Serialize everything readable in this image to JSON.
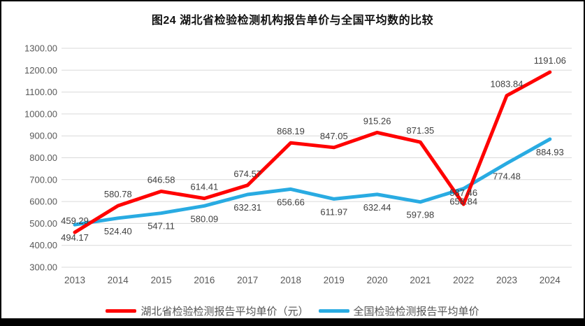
{
  "figure": {
    "title": "图24 湖北省检验检测机构报告单价与全国平均数的比较"
  },
  "chart_data": {
    "type": "line",
    "categories": [
      "2013",
      "2014",
      "2015",
      "2016",
      "2017",
      "2018",
      "2019",
      "2020",
      "2021",
      "2022",
      "2023",
      "2024"
    ],
    "series": [
      {
        "name": "湖北省检验检测报告平均单价（元）",
        "color": "#FF0000",
        "label_position": "above",
        "values": [
          459.29,
          580.78,
          646.58,
          614.41,
          674.57,
          868.19,
          847.05,
          915.26,
          871.35,
          587.46,
          1083.84,
          1191.06
        ]
      },
      {
        "name": "全国检验检测报告平均单价",
        "color": "#29ABE2",
        "label_position": "below",
        "values": [
          494.17,
          524.4,
          547.11,
          580.09,
          632.31,
          656.66,
          611.97,
          632.44,
          597.98,
          658.84,
          774.48,
          884.93
        ]
      }
    ],
    "ylim": [
      300,
      1300
    ],
    "ytick_step": 100,
    "yticks": [
      "300.00",
      "400.00",
      "500.00",
      "600.00",
      "700.00",
      "800.00",
      "900.00",
      "1000.00",
      "1100.00",
      "1200.00",
      "1300.00"
    ],
    "grid": true,
    "gridline_color": "#D9D9D9",
    "tick_label_color": "#595959",
    "data_label_color": "#404040",
    "legend_position": "bottom",
    "value_decimals": 2
  }
}
